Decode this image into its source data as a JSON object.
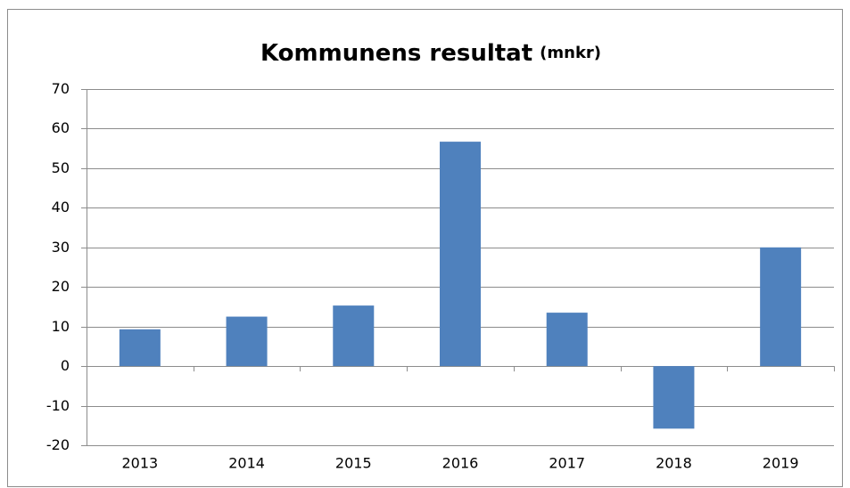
{
  "chart_data": {
    "type": "bar",
    "title": "Kommunens resultat",
    "title_unit": "(mnkr)",
    "categories": [
      "2013",
      "2014",
      "2015",
      "2016",
      "2017",
      "2018",
      "2019"
    ],
    "values": [
      9.3,
      12.5,
      15.3,
      56.7,
      13.5,
      -15.8,
      30
    ],
    "color": "#4f81bd",
    "ylim": [
      -20,
      70
    ],
    "yticks": [
      -20,
      -10,
      0,
      10,
      20,
      30,
      40,
      50,
      60,
      70
    ],
    "grid": true
  }
}
